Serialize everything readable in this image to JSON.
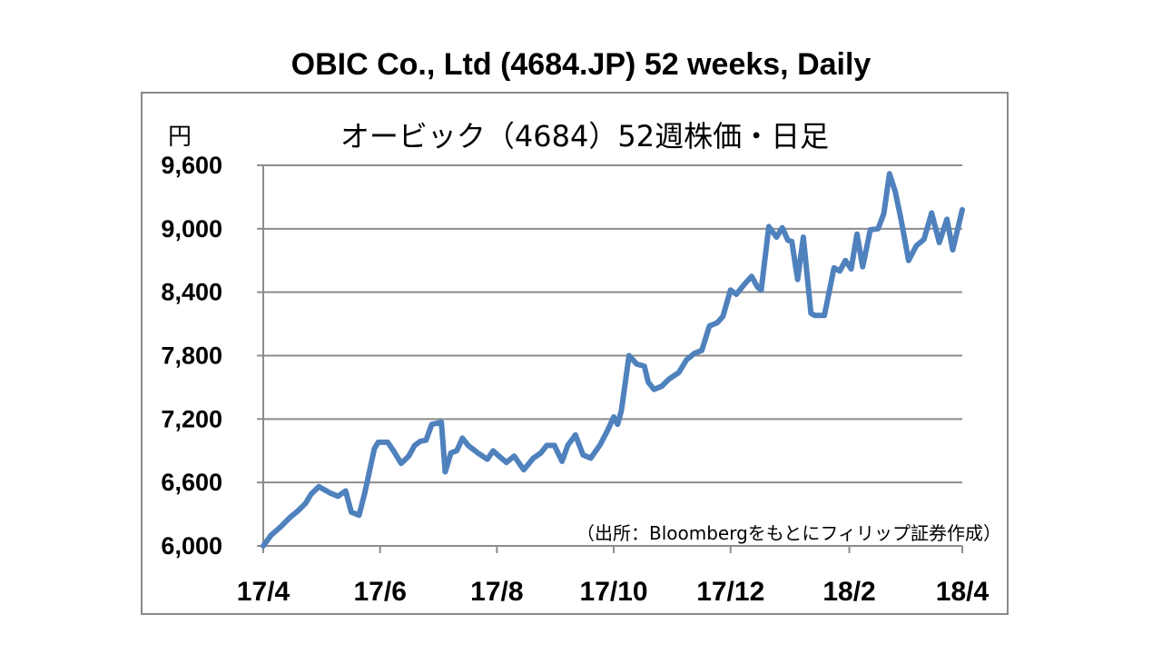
{
  "header": {
    "title": "OBIC Co., Ltd  (4684.JP) 52 weeks, Daily"
  },
  "chart_data": {
    "type": "line",
    "title": "オービック（4684）52週株価・日足",
    "ylabel": "円",
    "source": "（出所：Bloombergをもとにフィリップ証券作成）",
    "ylim": [
      6000,
      9600
    ],
    "yticks": [
      "6,000",
      "6,600",
      "7,200",
      "7,800",
      "8,400",
      "9,000",
      "9,600"
    ],
    "ytick_values": [
      6000,
      6600,
      7200,
      7800,
      8400,
      9000,
      9600
    ],
    "xlim": [
      "2017-04-03",
      "2018-04-03"
    ],
    "xtick_labels": [
      "17/4",
      "17/6",
      "17/8",
      "17/10",
      "17/12",
      "18/2",
      "18/4"
    ],
    "xtick_dates": [
      "2017-04-03",
      "2017-06-03",
      "2017-08-03",
      "2017-10-03",
      "2017-12-03",
      "2018-02-03",
      "2018-04-03"
    ],
    "grid": true,
    "line_color": "#4f81bd",
    "series": [
      {
        "x": [
          "2017-04-03",
          "2017-04-07",
          "2017-04-12",
          "2017-04-17",
          "2017-04-21",
          "2017-04-25",
          "2017-04-28",
          "2017-05-02",
          "2017-05-08",
          "2017-05-12",
          "2017-05-16",
          "2017-05-19",
          "2017-05-23",
          "2017-05-26",
          "2017-05-31",
          "2017-06-02",
          "2017-06-07",
          "2017-06-10",
          "2017-06-14",
          "2017-06-18",
          "2017-06-21",
          "2017-06-24",
          "2017-06-27",
          "2017-06-30",
          "2017-07-05",
          "2017-07-07",
          "2017-07-10",
          "2017-07-13",
          "2017-07-16",
          "2017-07-19",
          "2017-07-24",
          "2017-07-29",
          "2017-08-01",
          "2017-08-04",
          "2017-08-08",
          "2017-08-12",
          "2017-08-17",
          "2017-08-22",
          "2017-08-26",
          "2017-08-29",
          "2017-09-02",
          "2017-09-06",
          "2017-09-09",
          "2017-09-13",
          "2017-09-17",
          "2017-09-21",
          "2017-09-26",
          "2017-09-30",
          "2017-10-03",
          "2017-10-05",
          "2017-10-07",
          "2017-10-11",
          "2017-10-15",
          "2017-10-19",
          "2017-10-21",
          "2017-10-24",
          "2017-10-28",
          "2017-11-01",
          "2017-11-06",
          "2017-11-10",
          "2017-11-14",
          "2017-11-18",
          "2017-11-22",
          "2017-11-26",
          "2017-11-29",
          "2017-12-03",
          "2017-12-06",
          "2017-12-10",
          "2017-12-14",
          "2017-12-17",
          "2017-12-19",
          "2017-12-23",
          "2017-12-27",
          "2017-12-30",
          "2018-01-02",
          "2018-01-04",
          "2018-01-07",
          "2018-01-10",
          "2018-01-14",
          "2018-01-16",
          "2018-01-21",
          "2018-01-26",
          "2018-01-29",
          "2018-02-01",
          "2018-02-04",
          "2018-02-07",
          "2018-02-10",
          "2018-02-14",
          "2018-02-18",
          "2018-02-21",
          "2018-02-24",
          "2018-02-27",
          "2018-03-02",
          "2018-03-06",
          "2018-03-10",
          "2018-03-14",
          "2018-03-18",
          "2018-03-22",
          "2018-03-26",
          "2018-03-29",
          "2018-04-03"
        ],
        "values": [
          6000,
          6100,
          6180,
          6270,
          6330,
          6400,
          6490,
          6560,
          6500,
          6470,
          6520,
          6320,
          6290,
          6500,
          6920,
          6980,
          6980,
          6900,
          6780,
          6850,
          6950,
          6990,
          7000,
          7150,
          7170,
          6700,
          6880,
          6900,
          7020,
          6950,
          6880,
          6820,
          6900,
          6850,
          6790,
          6850,
          6720,
          6830,
          6880,
          6950,
          6950,
          6800,
          6950,
          7050,
          6860,
          6830,
          6960,
          7100,
          7220,
          7150,
          7280,
          7800,
          7720,
          7700,
          7550,
          7480,
          7510,
          7580,
          7640,
          7760,
          7820,
          7850,
          8080,
          8110,
          8170,
          8420,
          8380,
          8470,
          8550,
          8450,
          8420,
          9020,
          8920,
          9010,
          8890,
          8880,
          8520,
          8920,
          8200,
          8180,
          8180,
          8630,
          8600,
          8700,
          8620,
          8950,
          8640,
          8990,
          9000,
          9140,
          9520,
          9350,
          9090,
          8700,
          8840,
          8900,
          9150,
          8870,
          9090,
          8800,
          9180
        ]
      }
    ]
  }
}
